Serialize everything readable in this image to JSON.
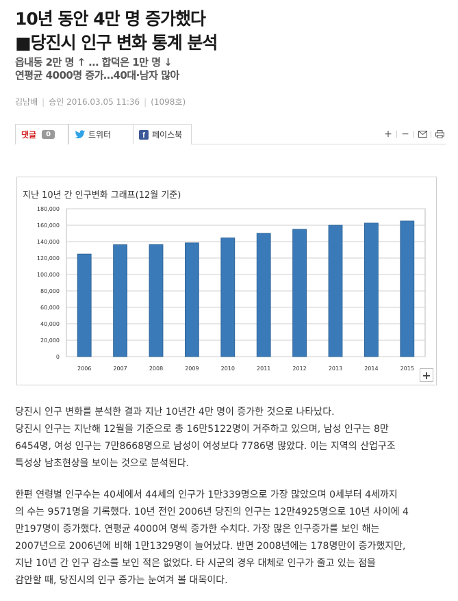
{
  "headline": {
    "line1": "10년 동안 4만 명 증가했다",
    "line2": "■당진시 인구 변화 통계 분석"
  },
  "subhead": {
    "line1": "읍내동 2만 명 ↑ … 합덕은 1만 명 ↓",
    "line2": "연평균 4000명 증가…40대·남자 많아"
  },
  "meta": {
    "author": "김남배",
    "approved": "승인 2016.03.05 11:36",
    "issue": "(1098호)"
  },
  "share": {
    "comment_label": "댓글",
    "comment_count": "0",
    "twitter_label": "트위터",
    "facebook_label": "페이스북",
    "tools": [
      "+",
      "−",
      "✉",
      "print"
    ]
  },
  "figure": {
    "zoom_label": "+"
  },
  "chart_data": {
    "type": "bar",
    "title": "지난 10년 간 인구변화 그래프(12월 기준)",
    "categories": [
      "2006",
      "2007",
      "2008",
      "2009",
      "2010",
      "2011",
      "2012",
      "2013",
      "2014",
      "2015"
    ],
    "values": [
      124925,
      136254,
      136432,
      138500,
      144600,
      150200,
      155000,
      160000,
      162600,
      165122
    ],
    "ylim": [
      0,
      180000
    ],
    "yticks": [
      "0",
      "20,000",
      "40,000",
      "60,000",
      "80,000",
      "100,000",
      "120,000",
      "140,000",
      "160,000",
      "180,000"
    ],
    "grid": true,
    "bar_color": "#3a7ab8"
  },
  "article": {
    "p1": [
      "당진시 인구 변화를 분석한 결과 지난 10년간 4만 명이 증가한 것으로 나타났다.",
      "당진시 인구는 지난해 12월을 기준으로 총 16만5122명이 거주하고 있으며, 남성 인구는 8만",
      "6454명, 여성 인구는 7만8668명으로 남성이 여성보다 7786명 많았다. 이는 지역의 산업구조",
      "특성상 남초현상을 보이는 것으로 분석된다."
    ],
    "p2": [
      "한편 연령별 인구수는 40세에서 44세의 인구가 1만339명으로 가장 많았으며 0세부터 4세까지",
      "의 수는 9571명을 기록했다. 10년 전인 2006년 당진의 인구는 12만4925명으로 10년 사이에 4",
      "만197명이 증가했다. 연평균 4000여 명씩 증가한 수치다. 가장 많은 인구증가를 보인 해는",
      "2007년으로 2006년에 비해 1만1329명이 늘어났다. 반면 2008년에는 178명만이 증가했지만,",
      "지난 10년 간 인구 감소를 보인 적은 없었다. 타 시군의 경우 대체로 인구가 줄고 있는 점을",
      "감안할 때, 당진시의 인구 증가는 눈여겨 볼 대목이다."
    ]
  }
}
